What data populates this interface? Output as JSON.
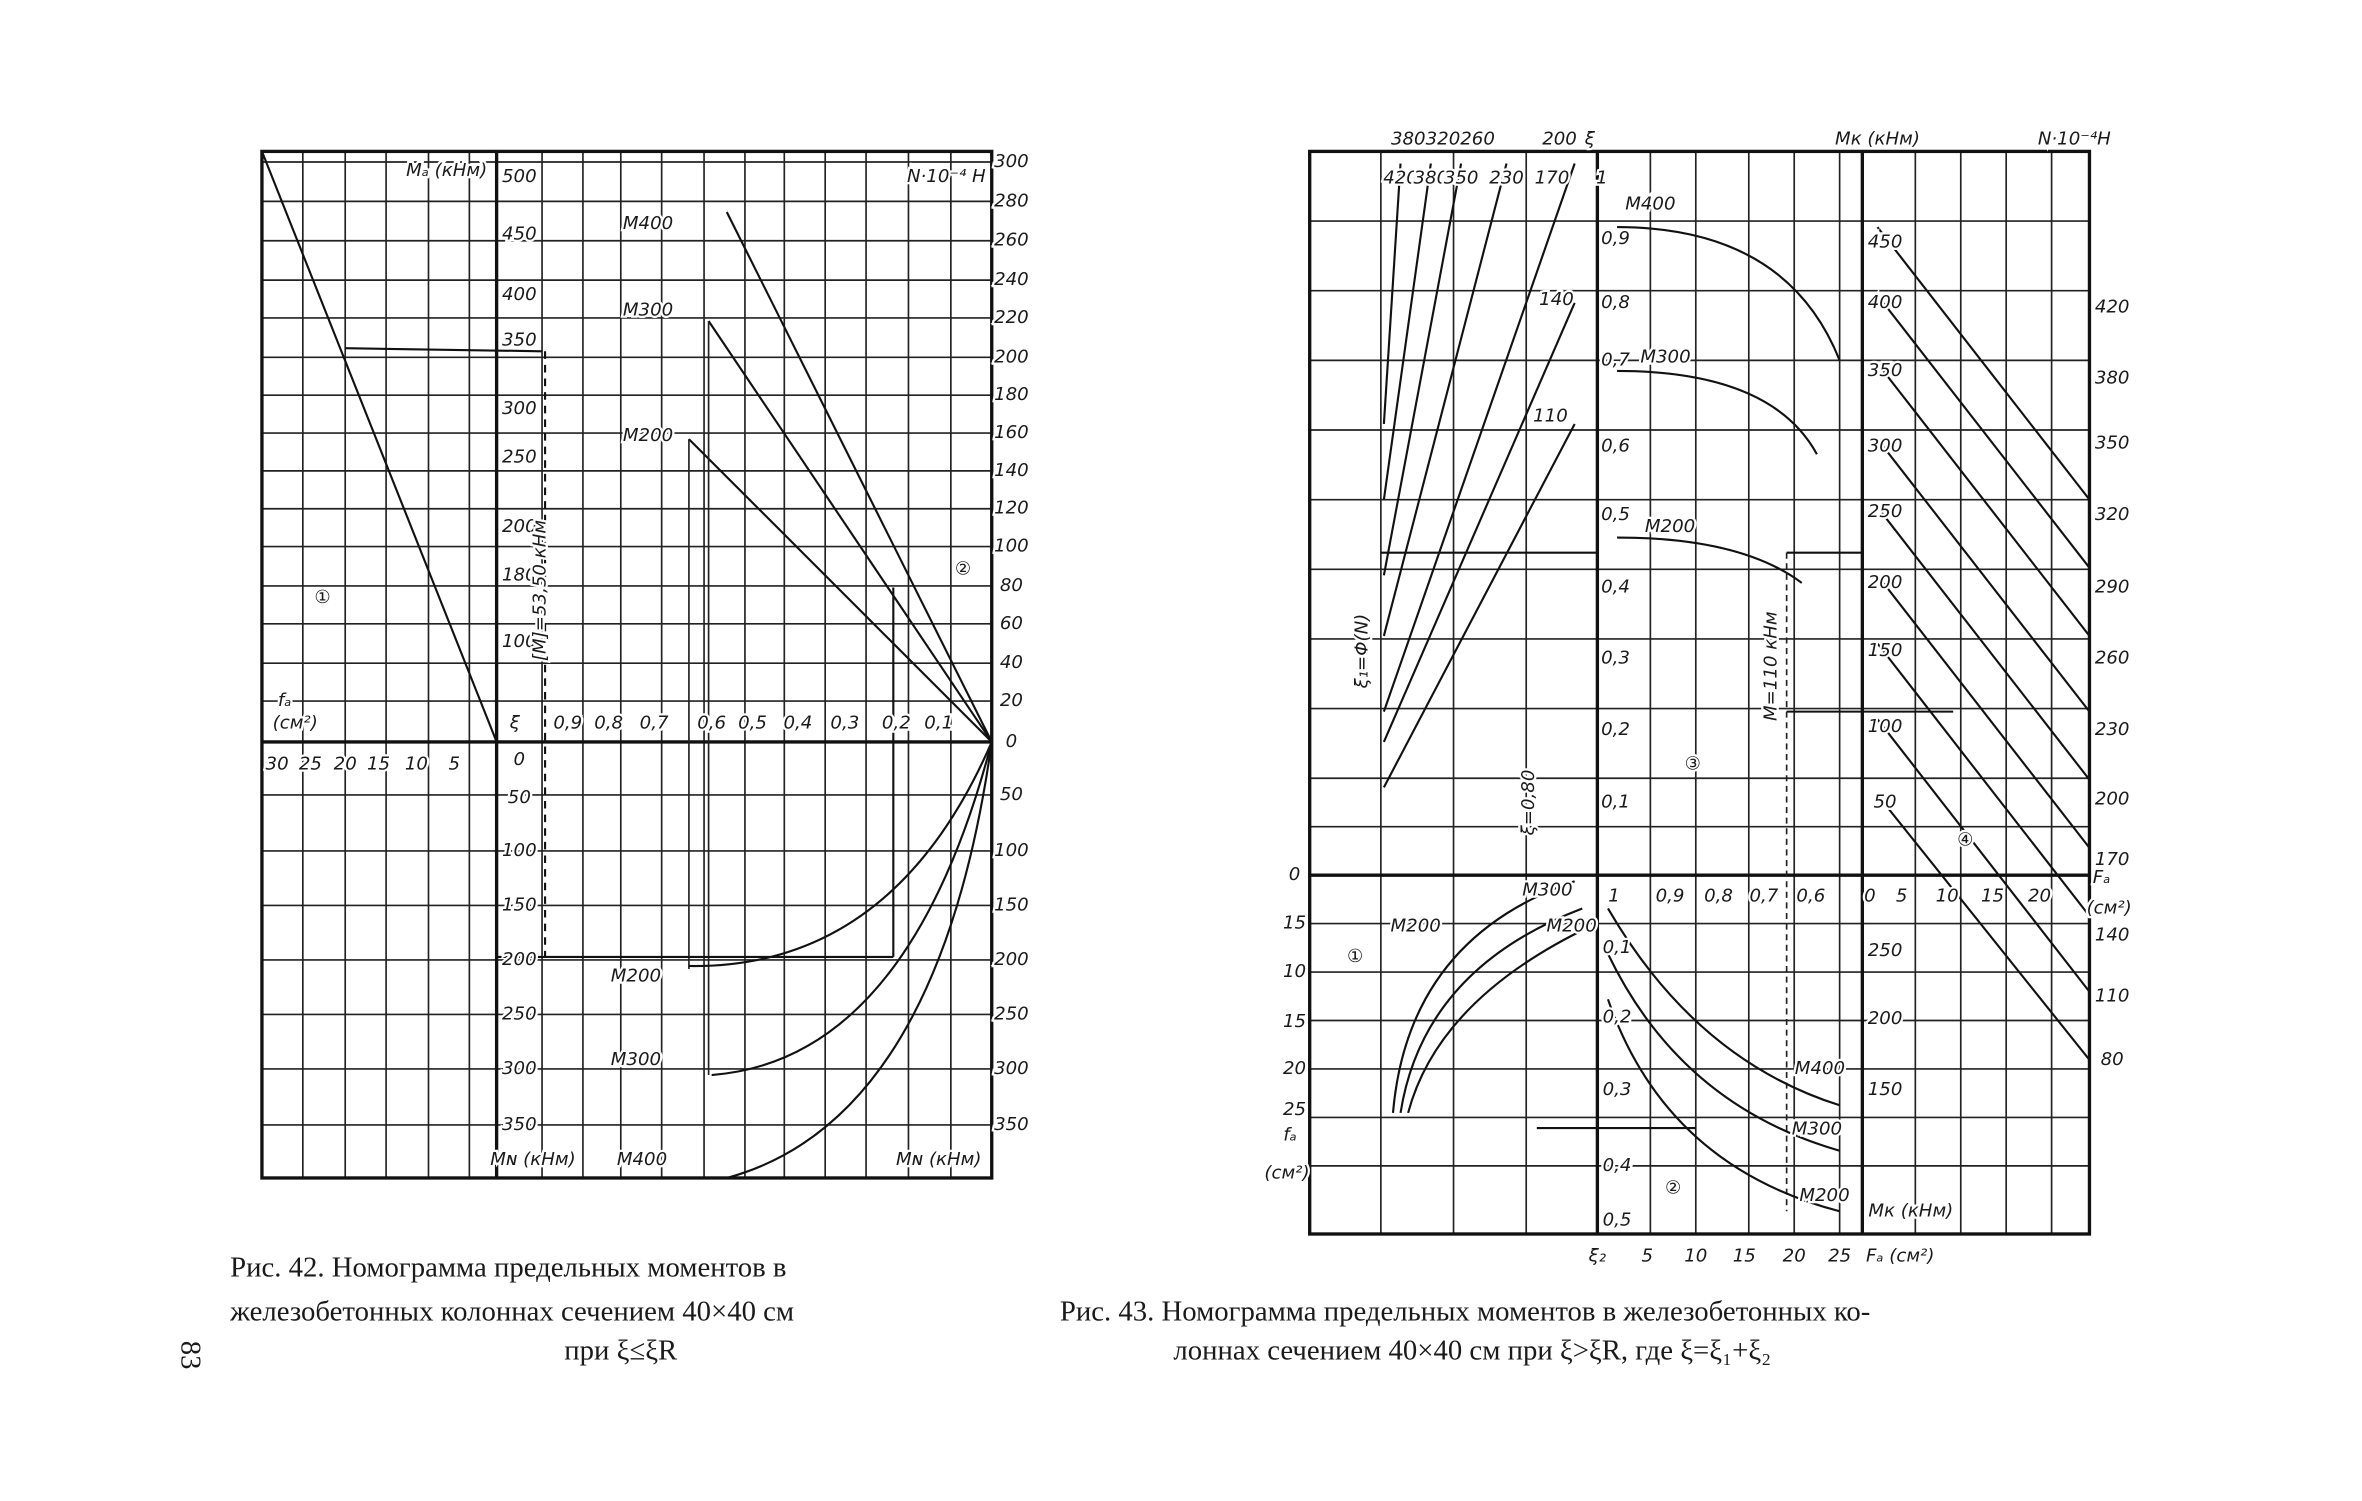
{
  "page_number": "83",
  "caption42": [
    "Рис. 42. Номограмма предельных моментов в",
    "железобетонных колоннах сечением 40×40 см",
    "при ξ≤ξR"
  ],
  "caption43": [
    "Рис. 43. Номограмма предельных моментов в железобетонных ко-",
    "лоннах сечением 40×40 см при ξ>ξR, где ξ=ξ₁+ξ₂"
  ],
  "fig42": {
    "labels": [
      "Mₐ (кНм)",
      "N·10⁻⁴ H",
      "300",
      "280",
      "260",
      "240",
      "220",
      "200",
      "180",
      "160",
      "140",
      "120",
      "100",
      "80",
      "60",
      "40",
      "20",
      "0",
      "50",
      "100",
      "150",
      "200",
      "250",
      "300",
      "350",
      "500",
      "450",
      "400",
      "350",
      "300",
      "250",
      "200",
      "180",
      "100",
      "0",
      "50",
      "100",
      "150",
      "200",
      "250",
      "300",
      "350",
      "ξ",
      "0,9",
      "0,8",
      "0,7",
      "0,6",
      "0,5",
      "0,4",
      "0,3",
      "0,2",
      "0,1",
      "30",
      "25",
      "20",
      "15",
      "10",
      "5",
      "M400",
      "M300",
      "M200",
      "①",
      "②",
      "fₐ",
      "(см²)",
      "[M]=53,50 кНм",
      "M200",
      "M300",
      "Mɴ (кНм)",
      "M400",
      "Mɴ (кНм)"
    ]
  },
  "fig43": {
    "labels": [
      "380320260",
      "200",
      "ξ",
      "Mк (кНм)",
      "N·10⁻⁴H",
      "420",
      "380",
      "350",
      "230",
      "170",
      "1",
      "0,9",
      "0,8",
      "0,7",
      "0,6",
      "0,5",
      "0,4",
      "0,3",
      "0,2",
      "0,1",
      "M400",
      "M300",
      "M200",
      "140",
      "110",
      "ξ₁=Φ(N)",
      "ξ=0,80",
      "M=110 кНм",
      "③",
      "④",
      "450",
      "400",
      "350",
      "300",
      "250",
      "200",
      "150",
      "100",
      "50",
      "420",
      "380",
      "350",
      "320",
      "290",
      "260",
      "230",
      "200",
      "170",
      "140",
      "110",
      "80",
      "1",
      "0,9",
      "0,8",
      "0,7",
      "0,6",
      "0",
      "5",
      "10",
      "15",
      "20",
      "Fₐ",
      "(см²)",
      "0",
      "15",
      "10",
      "15",
      "20",
      "25",
      "fₐ",
      "(см²)",
      "①",
      "M200",
      "M300",
      "M200",
      "0,1",
      "0,2",
      "0,3",
      "0,4",
      "0,5",
      "M400",
      "M300",
      "M200",
      "Mк (кНм)",
      "②",
      "250",
      "200",
      "150",
      "ξ₂",
      "5",
      "10",
      "15",
      "20",
      "25",
      "Fₐ (см²)"
    ]
  }
}
